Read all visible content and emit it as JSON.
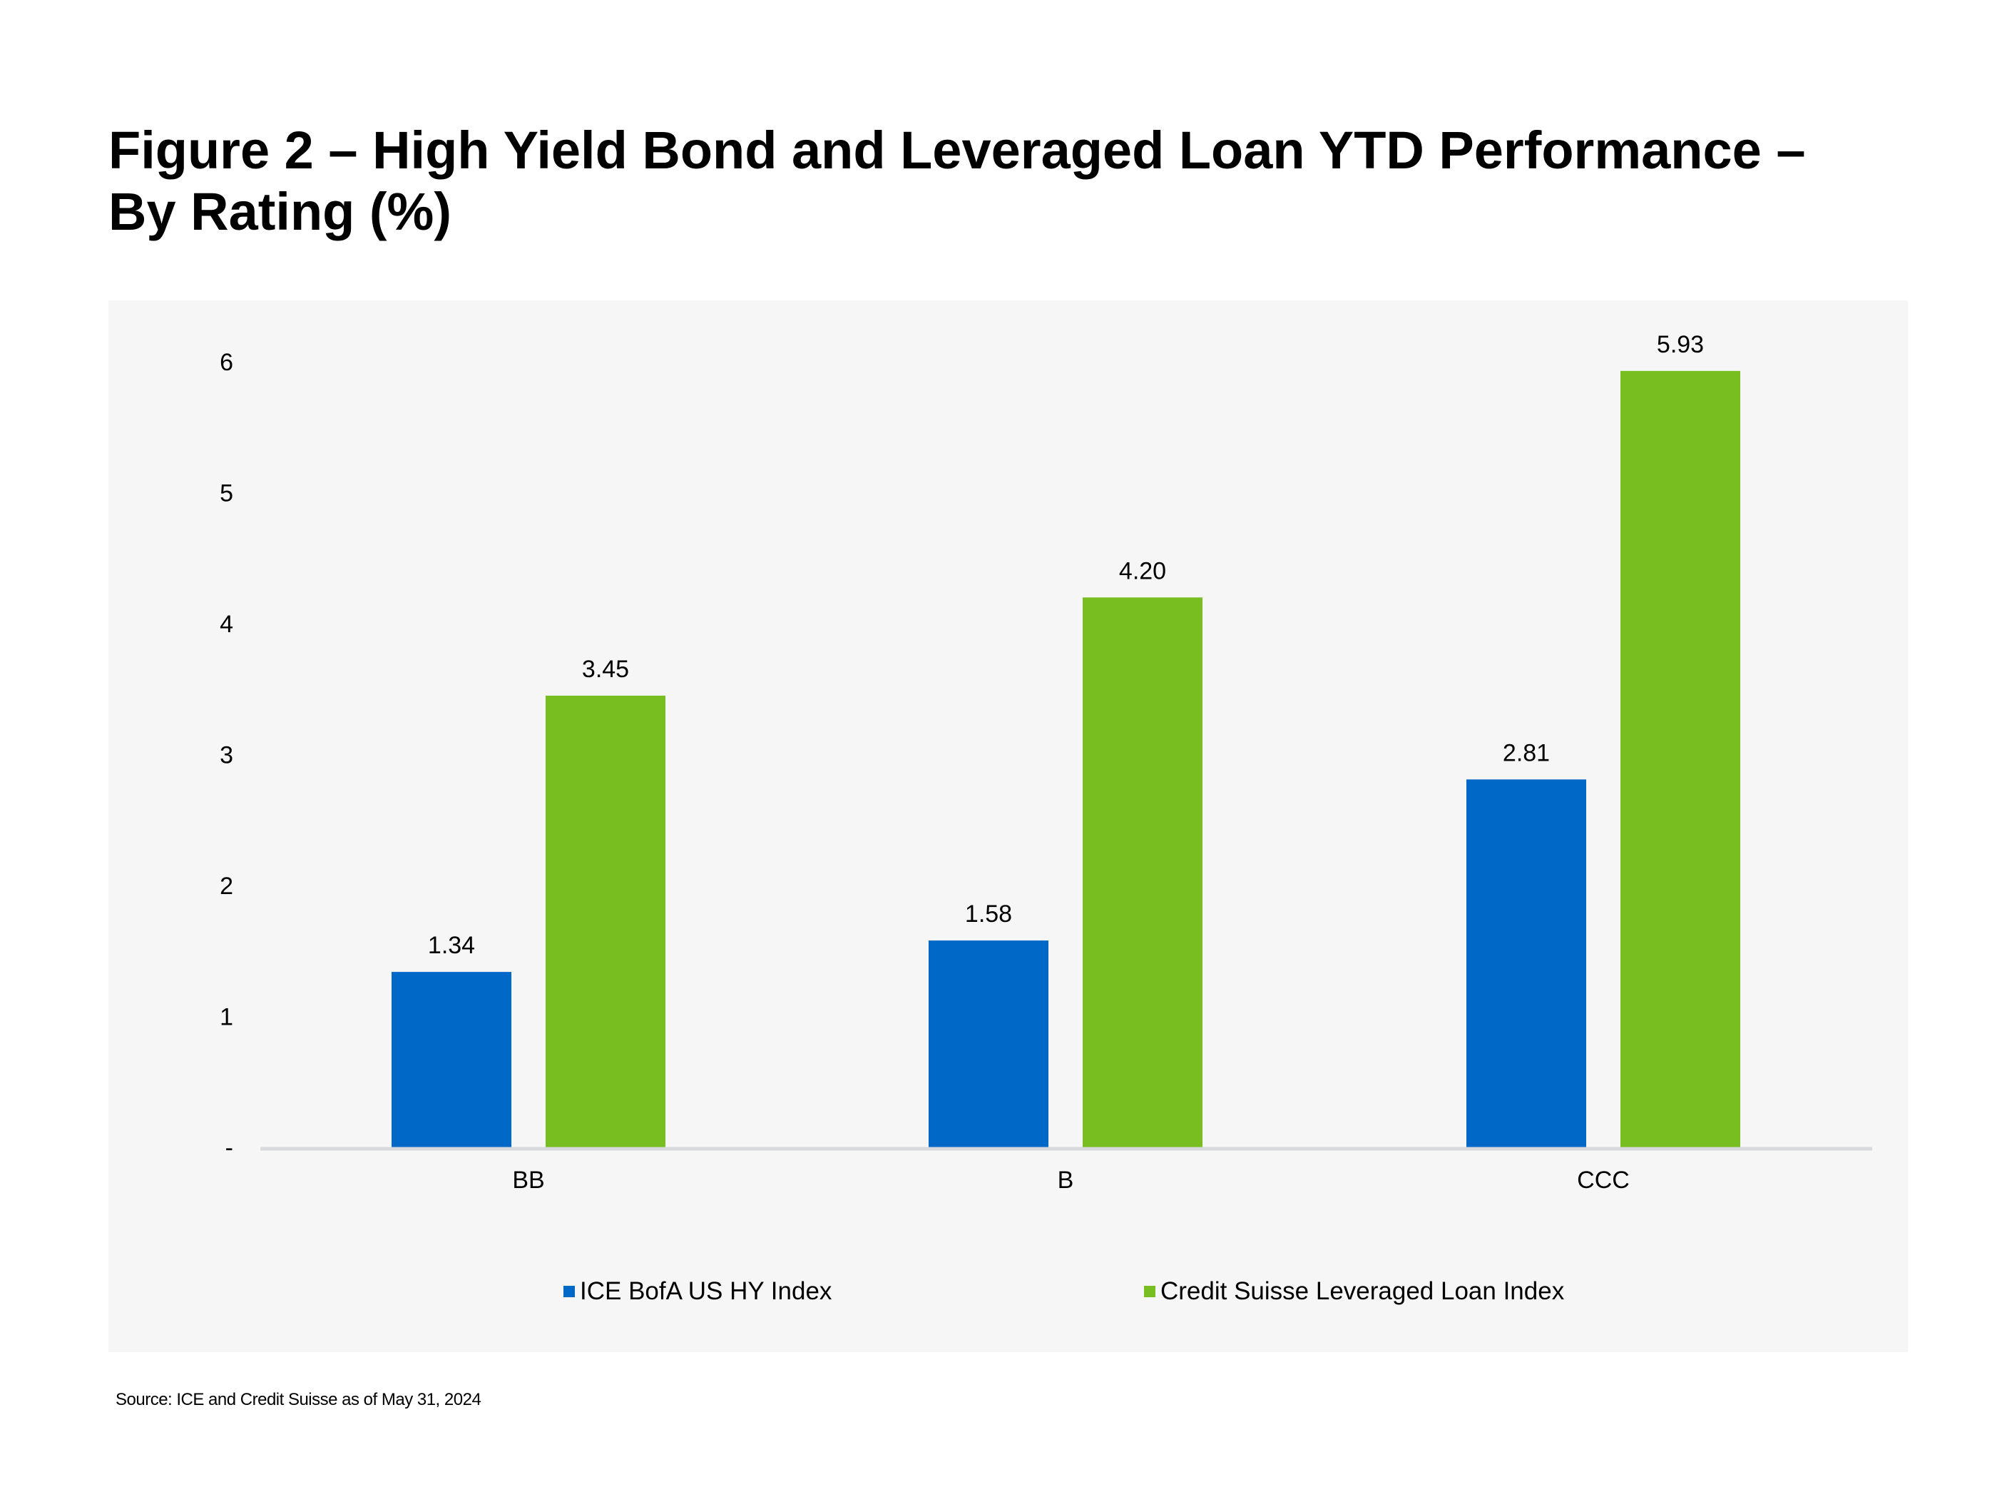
{
  "title_lines": [
    "Figure 2 – High Yield Bond and Leveraged Loan YTD Performance –",
    "By Rating (%)"
  ],
  "source": "Source: ICE and Credit Suisse as of May 31, 2024",
  "colors": {
    "ice": "#0068c6",
    "cs": "#78be20",
    "panel": "#f6f6f6",
    "axis": "#d8dadd"
  },
  "chart_data": {
    "type": "bar",
    "title": "Figure 2 – High Yield Bond and Leveraged Loan YTD Performance – By Rating (%)",
    "categories": [
      "BB",
      "B",
      "CCC"
    ],
    "series": [
      {
        "name": "ICE BofA US HY Index",
        "values": [
          1.34,
          1.58,
          2.81
        ],
        "labels": [
          "1.34",
          "1.58",
          "2.81"
        ],
        "color": "#0068c6"
      },
      {
        "name": "Credit Suisse Leveraged Loan Index",
        "values": [
          3.45,
          4.2,
          5.93
        ],
        "labels": [
          "3.45",
          "4.20",
          "5.93"
        ],
        "color": "#78be20"
      }
    ],
    "y_ticks": [
      0,
      1,
      2,
      3,
      4,
      5,
      6
    ],
    "y_tick_labels": [
      "-",
      "1",
      "2",
      "3",
      "4",
      "5",
      "6"
    ],
    "ylim": [
      0,
      6
    ],
    "xlabel": "",
    "ylabel": "",
    "grid": false,
    "legend_position": "bottom"
  }
}
